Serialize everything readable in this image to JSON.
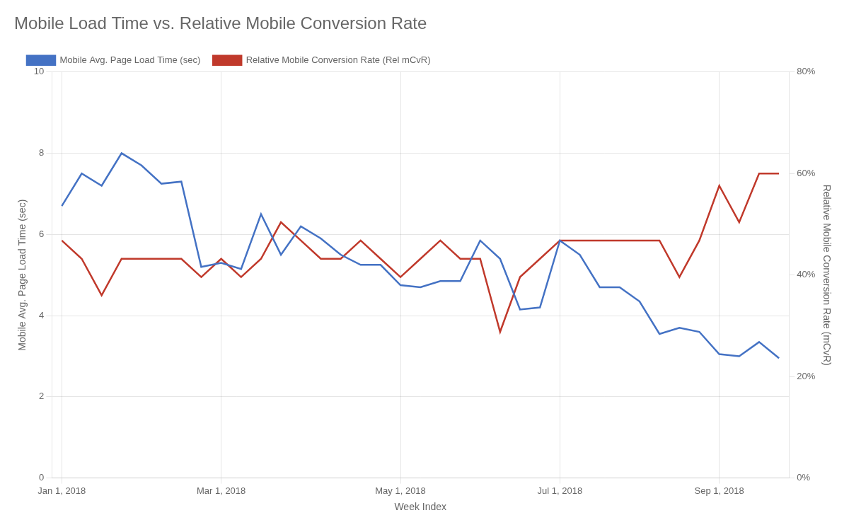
{
  "chart_data": {
    "type": "line",
    "title": "Mobile Load Time vs. Relative Mobile Conversion Rate",
    "xlabel": "Week Index",
    "ylabel": "Mobile Avg. Page Load Time (sec)",
    "y2label": "Relative Mobile Conversion Rate (mCvR)",
    "categories": [
      "Jan 1, 2018",
      null,
      null,
      null,
      null,
      null,
      null,
      null,
      "Mar 1, 2018",
      null,
      null,
      null,
      null,
      null,
      null,
      null,
      null,
      "May 1, 2018",
      null,
      null,
      null,
      null,
      null,
      null,
      null,
      "Jul 1, 2018",
      null,
      null,
      null,
      null,
      null,
      null,
      null,
      "Sep 1, 2018",
      null,
      null,
      null
    ],
    "series": [
      {
        "name": "Mobile Avg. Page Load Time (sec)",
        "color": "#4472C4",
        "values": [
          6.7,
          7.5,
          7.2,
          8.0,
          7.7,
          7.25,
          7.3,
          5.2,
          5.3,
          5.15,
          6.5,
          5.5,
          6.2,
          5.9,
          5.5,
          5.25,
          5.25,
          4.75,
          4.7,
          4.85,
          4.85,
          5.85,
          5.4,
          4.15,
          4.2,
          5.85,
          5.5,
          4.7,
          4.7,
          4.35,
          3.55,
          3.7,
          3.6,
          3.05,
          3.0,
          3.35,
          2.95
        ]
      },
      {
        "name": "Relative Mobile Conversion Rate (Rel mCvR)",
        "color": "#C0392B",
        "axis": "y2",
        "values": [
          0.468,
          0.432,
          0.36,
          0.432,
          0.432,
          0.432,
          0.432,
          0.396,
          0.432,
          0.396,
          0.432,
          0.504,
          0.468,
          0.432,
          0.432,
          0.468,
          0.432,
          0.396,
          0.432,
          0.468,
          0.432,
          0.432,
          0.288,
          0.396,
          0.432,
          0.468,
          0.468,
          0.468,
          0.468,
          0.468,
          0.468,
          0.396,
          0.468,
          0.576,
          0.504,
          0.6,
          0.6
        ]
      }
    ],
    "ylim": [
      0,
      10
    ],
    "yticks": [
      0,
      2,
      4,
      6,
      8,
      10
    ],
    "y2lim": [
      0,
      0.8
    ],
    "y2ticks": [
      {
        "value": 0,
        "label": "0%"
      },
      {
        "value": 0.2,
        "label": "20%"
      },
      {
        "value": 0.4,
        "label": "40%"
      },
      {
        "value": 0.6,
        "label": "60%"
      },
      {
        "value": 0.8,
        "label": "80%"
      }
    ],
    "grid": true,
    "legend": "upper left"
  }
}
